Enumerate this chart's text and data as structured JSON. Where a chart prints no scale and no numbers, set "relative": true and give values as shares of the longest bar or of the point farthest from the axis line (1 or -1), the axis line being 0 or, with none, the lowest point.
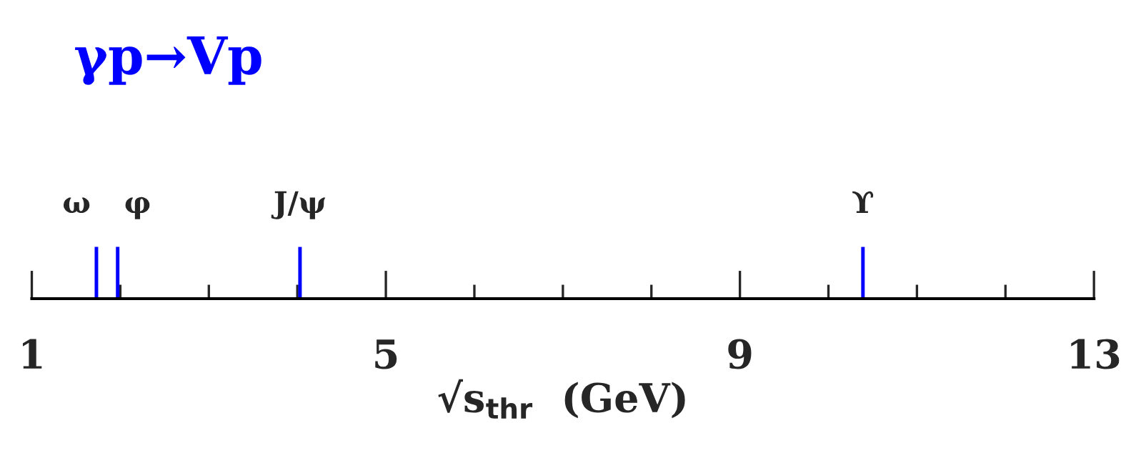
{
  "chart_data": {
    "type": "bar",
    "title": "γp→Vp",
    "xlabel": "√s$_{thr}$  (GeV)",
    "x": [
      1.73,
      1.97,
      4.03,
      10.39
    ],
    "values": [
      1,
      1,
      1,
      1
    ],
    "annotations": [
      {
        "text": "ω",
        "x": 1.73,
        "y": 1
      },
      {
        "text": "φ",
        "x": 1.97,
        "y": 1
      },
      {
        "text": "J/ψ",
        "x": 4.03,
        "y": 1
      },
      {
        "text": "ϒ",
        "x": 10.39,
        "y": 1
      }
    ],
    "color": "#0000ff",
    "relative": true,
    "xlim": [
      1,
      13
    ],
    "xticks": [
      1,
      {
        "value": 2,
        "label": null
      },
      {
        "value": 3,
        "label": null
      },
      {
        "value": 4,
        "label": null
      },
      5,
      {
        "value": 6,
        "label": null
      },
      {
        "value": 7,
        "label": null
      },
      {
        "value": 8,
        "label": null
      },
      9,
      {
        "value": 10,
        "label": null
      },
      {
        "value": 11,
        "label": null
      },
      {
        "value": 12,
        "label": null
      },
      13
    ],
    "tick_labels": "x",
    "grid": false,
    "legend": false
  }
}
